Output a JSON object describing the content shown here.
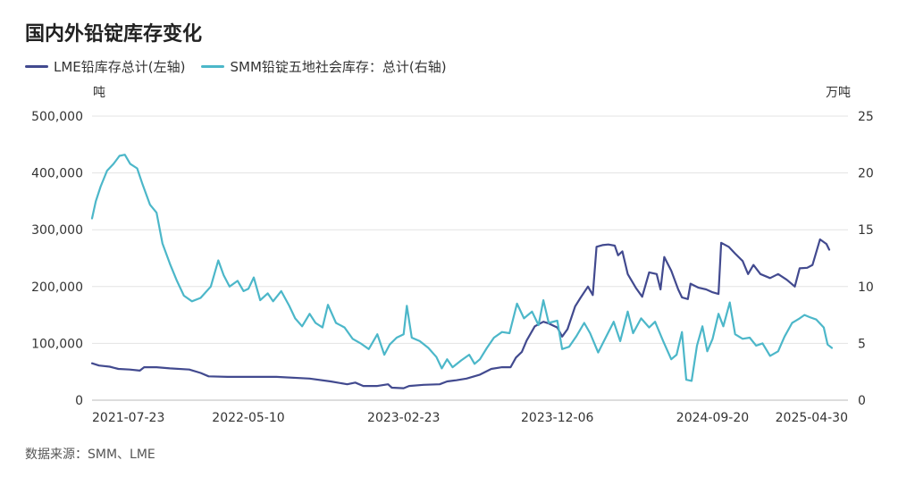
{
  "title": "国内外铅锭库存变化",
  "source": "数据来源：SMM、LME",
  "colors": {
    "lme": "#424a8f",
    "smm": "#4cb7c9",
    "grid": "#e3e3e3",
    "axis": "#333333"
  },
  "chart_data": {
    "type": "line",
    "title": "国内外铅锭库存变化",
    "left_unit": "吨",
    "right_unit": "万吨",
    "y_left_lim": [
      0,
      500000
    ],
    "y_right_lim": [
      0,
      25
    ],
    "y_left_ticks": [
      "0",
      "100,000",
      "200,000",
      "300,000",
      "400,000",
      "500,000"
    ],
    "y_right_ticks": [
      "0",
      "5",
      "10",
      "15",
      "20",
      "25"
    ],
    "x_ticks": [
      "2021-07-23",
      "2022-05-10",
      "2023-02-23",
      "2023-12-06",
      "2024-09-20",
      "2025-04-30"
    ],
    "x_range": [
      "2021-07-23",
      "2025-05-30"
    ],
    "grid": "horizontal",
    "legend": "top-left",
    "series": [
      {
        "name": "LME铅库存总计(左轴)",
        "axis": "left",
        "color": "#424a8f",
        "points": [
          [
            "2021-07-23",
            65000
          ],
          [
            "2021-08-05",
            61000
          ],
          [
            "2021-08-25",
            59000
          ],
          [
            "2021-09-10",
            55000
          ],
          [
            "2021-10-01",
            54000
          ],
          [
            "2021-10-20",
            52000
          ],
          [
            "2021-10-28",
            58000
          ],
          [
            "2021-11-20",
            58000
          ],
          [
            "2021-12-15",
            56000
          ],
          [
            "2022-01-20",
            54000
          ],
          [
            "2022-02-10",
            48000
          ],
          [
            "2022-02-25",
            42000
          ],
          [
            "2022-04-01",
            41000
          ],
          [
            "2022-05-10",
            41000
          ],
          [
            "2022-07-01",
            41000
          ],
          [
            "2022-09-01",
            38000
          ],
          [
            "2022-10-10",
            33000
          ],
          [
            "2022-11-10",
            28000
          ],
          [
            "2022-11-25",
            31000
          ],
          [
            "2022-12-10",
            25000
          ],
          [
            "2023-01-05",
            25000
          ],
          [
            "2023-01-25",
            28000
          ],
          [
            "2023-02-01",
            22000
          ],
          [
            "2023-02-23",
            21000
          ],
          [
            "2023-03-05",
            25000
          ],
          [
            "2023-04-01",
            27000
          ],
          [
            "2023-05-01",
            28000
          ],
          [
            "2023-05-15",
            33000
          ],
          [
            "2023-06-01",
            35000
          ],
          [
            "2023-06-20",
            38000
          ],
          [
            "2023-07-15",
            45000
          ],
          [
            "2023-08-05",
            55000
          ],
          [
            "2023-08-25",
            58000
          ],
          [
            "2023-09-10",
            58000
          ],
          [
            "2023-09-20",
            75000
          ],
          [
            "2023-10-01",
            85000
          ],
          [
            "2023-10-10",
            105000
          ],
          [
            "2023-10-25",
            130000
          ],
          [
            "2023-11-10",
            138000
          ],
          [
            "2023-11-20",
            135000
          ],
          [
            "2023-12-01",
            130000
          ],
          [
            "2023-12-06",
            128000
          ],
          [
            "2023-12-15",
            112000
          ],
          [
            "2023-12-25",
            125000
          ],
          [
            "2024-01-08",
            165000
          ],
          [
            "2024-01-18",
            180000
          ],
          [
            "2024-02-01",
            200000
          ],
          [
            "2024-02-10",
            185000
          ],
          [
            "2024-02-17",
            270000
          ],
          [
            "2024-02-28",
            273000
          ],
          [
            "2024-03-10",
            274000
          ],
          [
            "2024-03-22",
            272000
          ],
          [
            "2024-03-28",
            255000
          ],
          [
            "2024-04-05",
            262000
          ],
          [
            "2024-04-15",
            222000
          ],
          [
            "2024-04-30",
            198000
          ],
          [
            "2024-05-12",
            182000
          ],
          [
            "2024-05-25",
            225000
          ],
          [
            "2024-06-08",
            222000
          ],
          [
            "2024-06-15",
            195000
          ],
          [
            "2024-06-22",
            252000
          ],
          [
            "2024-07-05",
            228000
          ],
          [
            "2024-07-18",
            195000
          ],
          [
            "2024-07-25",
            181000
          ],
          [
            "2024-08-05",
            178000
          ],
          [
            "2024-08-10",
            205000
          ],
          [
            "2024-08-25",
            198000
          ],
          [
            "2024-09-08",
            195000
          ],
          [
            "2024-09-20",
            190000
          ],
          [
            "2024-10-01",
            187000
          ],
          [
            "2024-10-06",
            277000
          ],
          [
            "2024-10-20",
            270000
          ],
          [
            "2024-11-01",
            258000
          ],
          [
            "2024-11-15",
            245000
          ],
          [
            "2024-11-25",
            222000
          ],
          [
            "2024-12-05",
            238000
          ],
          [
            "2024-12-18",
            222000
          ],
          [
            "2025-01-05",
            215000
          ],
          [
            "2025-01-20",
            222000
          ],
          [
            "2025-02-05",
            212000
          ],
          [
            "2025-02-20",
            200000
          ],
          [
            "2025-03-01",
            232000
          ],
          [
            "2025-03-15",
            233000
          ],
          [
            "2025-03-25",
            238000
          ],
          [
            "2025-04-08",
            283000
          ],
          [
            "2025-04-20",
            275000
          ],
          [
            "2025-04-25",
            265000
          ]
        ]
      },
      {
        "name": "SMM铅锭五地社会库存：总计(右轴)",
        "axis": "right",
        "color": "#4cb7c9",
        "points": [
          [
            "2021-07-23",
            16.0
          ],
          [
            "2021-07-30",
            17.5
          ],
          [
            "2021-08-08",
            18.8
          ],
          [
            "2021-08-20",
            20.2
          ],
          [
            "2021-09-01",
            20.8
          ],
          [
            "2021-09-12",
            21.5
          ],
          [
            "2021-09-22",
            21.6
          ],
          [
            "2021-10-02",
            20.8
          ],
          [
            "2021-10-15",
            20.4
          ],
          [
            "2021-10-25",
            19.0
          ],
          [
            "2021-11-08",
            17.2
          ],
          [
            "2021-11-20",
            16.5
          ],
          [
            "2021-12-01",
            13.8
          ],
          [
            "2021-12-15",
            12.0
          ],
          [
            "2021-12-28",
            10.5
          ],
          [
            "2022-01-10",
            9.2
          ],
          [
            "2022-01-25",
            8.7
          ],
          [
            "2022-02-10",
            9.0
          ],
          [
            "2022-03-01",
            10.0
          ],
          [
            "2022-03-15",
            12.3
          ],
          [
            "2022-03-25",
            11.0
          ],
          [
            "2022-04-05",
            10.0
          ],
          [
            "2022-04-20",
            10.5
          ],
          [
            "2022-05-01",
            9.6
          ],
          [
            "2022-05-10",
            9.8
          ],
          [
            "2022-05-20",
            10.8
          ],
          [
            "2022-06-01",
            8.8
          ],
          [
            "2022-06-15",
            9.4
          ],
          [
            "2022-06-25",
            8.7
          ],
          [
            "2022-07-10",
            9.6
          ],
          [
            "2022-07-25",
            8.3
          ],
          [
            "2022-08-05",
            7.2
          ],
          [
            "2022-08-18",
            6.5
          ],
          [
            "2022-09-01",
            7.6
          ],
          [
            "2022-09-12",
            6.8
          ],
          [
            "2022-09-25",
            6.4
          ],
          [
            "2022-10-05",
            8.4
          ],
          [
            "2022-10-20",
            6.8
          ],
          [
            "2022-11-05",
            6.4
          ],
          [
            "2022-11-20",
            5.4
          ],
          [
            "2022-12-05",
            5.0
          ],
          [
            "2022-12-20",
            4.5
          ],
          [
            "2023-01-05",
            5.8
          ],
          [
            "2023-01-18",
            4.0
          ],
          [
            "2023-01-28",
            4.9
          ],
          [
            "2023-02-10",
            5.5
          ],
          [
            "2023-02-23",
            5.8
          ],
          [
            "2023-03-01",
            8.3
          ],
          [
            "2023-03-10",
            5.5
          ],
          [
            "2023-03-25",
            5.2
          ],
          [
            "2023-04-10",
            4.6
          ],
          [
            "2023-04-25",
            3.8
          ],
          [
            "2023-05-05",
            2.8
          ],
          [
            "2023-05-15",
            3.6
          ],
          [
            "2023-05-25",
            2.9
          ],
          [
            "2023-06-10",
            3.5
          ],
          [
            "2023-06-25",
            4.0
          ],
          [
            "2023-07-05",
            3.2
          ],
          [
            "2023-07-15",
            3.6
          ],
          [
            "2023-07-28",
            4.6
          ],
          [
            "2023-08-10",
            5.5
          ],
          [
            "2023-08-25",
            6.0
          ],
          [
            "2023-09-08",
            5.9
          ],
          [
            "2023-09-22",
            8.5
          ],
          [
            "2023-10-05",
            7.2
          ],
          [
            "2023-10-20",
            7.8
          ],
          [
            "2023-11-01",
            6.6
          ],
          [
            "2023-11-10",
            8.8
          ],
          [
            "2023-11-20",
            6.8
          ],
          [
            "2023-12-06",
            7.0
          ],
          [
            "2023-12-15",
            4.5
          ],
          [
            "2023-12-28",
            4.7
          ],
          [
            "2024-01-10",
            5.6
          ],
          [
            "2024-01-25",
            6.8
          ],
          [
            "2024-02-05",
            5.9
          ],
          [
            "2024-02-20",
            4.2
          ],
          [
            "2024-03-05",
            5.5
          ],
          [
            "2024-03-20",
            6.9
          ],
          [
            "2024-04-01",
            5.2
          ],
          [
            "2024-04-15",
            7.8
          ],
          [
            "2024-04-25",
            5.9
          ],
          [
            "2024-05-10",
            7.2
          ],
          [
            "2024-05-25",
            6.4
          ],
          [
            "2024-06-05",
            6.9
          ],
          [
            "2024-06-20",
            5.2
          ],
          [
            "2024-07-05",
            3.6
          ],
          [
            "2024-07-15",
            4.0
          ],
          [
            "2024-07-25",
            6.0
          ],
          [
            "2024-08-02",
            1.8
          ],
          [
            "2024-08-12",
            1.7
          ],
          [
            "2024-08-22",
            4.8
          ],
          [
            "2024-09-01",
            6.5
          ],
          [
            "2024-09-10",
            4.3
          ],
          [
            "2024-09-20",
            5.4
          ],
          [
            "2024-10-01",
            7.6
          ],
          [
            "2024-10-10",
            6.5
          ],
          [
            "2024-10-22",
            8.6
          ],
          [
            "2024-11-01",
            5.8
          ],
          [
            "2024-11-15",
            5.4
          ],
          [
            "2024-11-28",
            5.5
          ],
          [
            "2024-12-10",
            4.8
          ],
          [
            "2024-12-22",
            5.0
          ],
          [
            "2025-01-05",
            3.9
          ],
          [
            "2025-01-20",
            4.3
          ],
          [
            "2025-02-01",
            5.6
          ],
          [
            "2025-02-15",
            6.8
          ],
          [
            "2025-03-01",
            7.2
          ],
          [
            "2025-03-10",
            7.5
          ],
          [
            "2025-03-20",
            7.3
          ],
          [
            "2025-04-01",
            7.1
          ],
          [
            "2025-04-15",
            6.4
          ],
          [
            "2025-04-22",
            4.9
          ],
          [
            "2025-04-30",
            4.6
          ]
        ]
      }
    ]
  }
}
